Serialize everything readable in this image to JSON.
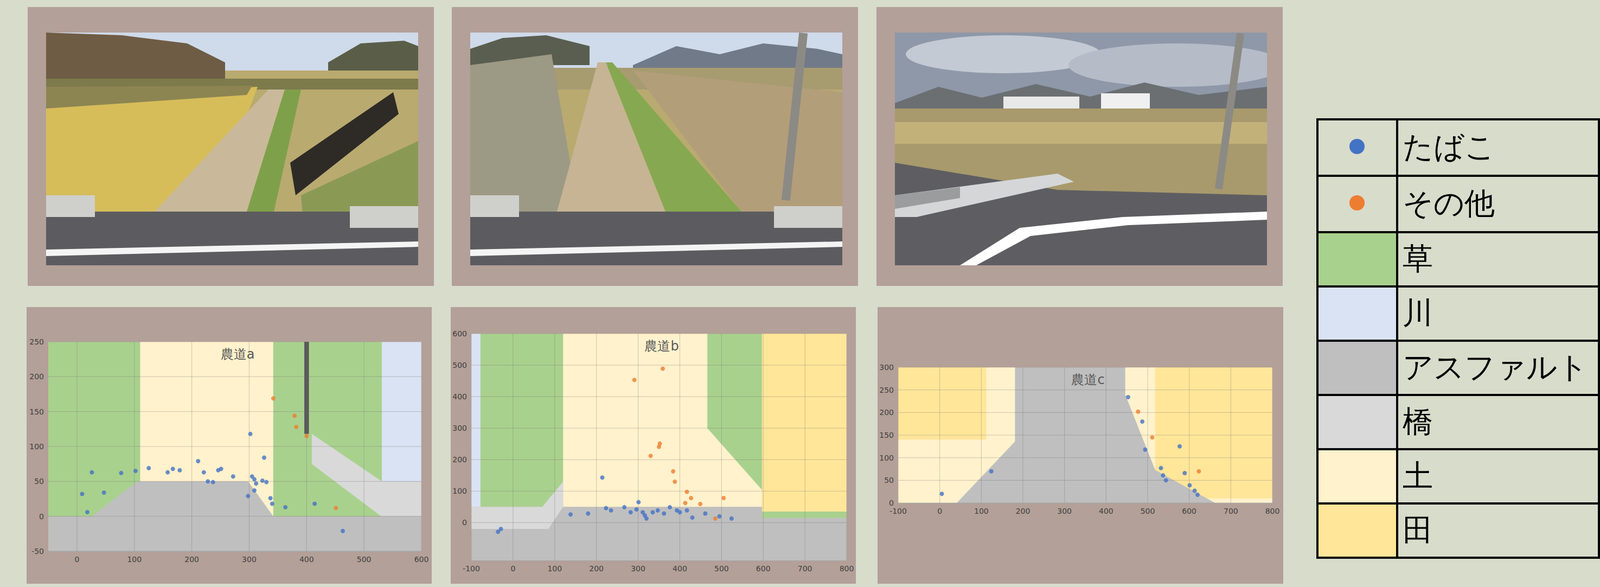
{
  "chart_data": [
    {
      "type": "scatter",
      "title": "農道a",
      "xlim": [
        -50,
        600
      ],
      "xticks": [
        0,
        100,
        200,
        300,
        400,
        500,
        600
      ],
      "ylim": [
        -50,
        250
      ],
      "yticks": [
        -50,
        0,
        50,
        100,
        150,
        200,
        250
      ],
      "grid": true,
      "series": [
        {
          "name": "たばこ",
          "color": "#4472c4",
          "marker": "circle",
          "x": [
            9,
            18,
            26,
            47,
            77,
            102,
            125,
            158,
            167,
            179,
            211,
            221,
            228,
            237,
            246,
            251,
            272,
            298,
            302,
            305,
            309,
            312,
            309,
            323,
            326,
            330,
            337,
            340,
            363,
            414,
            463
          ],
          "y": [
            32,
            6,
            63,
            34,
            62,
            65,
            69,
            63,
            68,
            66,
            79,
            63,
            50,
            49,
            66,
            68,
            57,
            29,
            118,
            57,
            53,
            47,
            37,
            51,
            84,
            49,
            26,
            18,
            13,
            18,
            -21
          ]
        },
        {
          "name": "その他",
          "color": "#ed7d31",
          "marker": "circle",
          "x": [
            342,
            379,
            382,
            400,
            451
          ],
          "y": [
            169,
            144,
            128,
            115,
            12
          ]
        }
      ],
      "regions": [
        {
          "fill": "草",
          "polygon": [
            [
              -50,
              0
            ],
            [
              110,
              0
            ],
            [
              110,
              250
            ],
            [
              -50,
              250
            ]
          ]
        },
        {
          "fill": "土",
          "polygon": [
            [
              110,
              0
            ],
            [
              342,
              0
            ],
            [
              342,
              250
            ],
            [
              110,
              250
            ]
          ]
        },
        {
          "fill": "草",
          "polygon": [
            [
              342,
              0
            ],
            [
              531,
              0
            ],
            [
              531,
              250
            ],
            [
              342,
              250
            ]
          ]
        },
        {
          "fill": "川",
          "polygon": [
            [
              531,
              50
            ],
            [
              600,
              50
            ],
            [
              600,
              250
            ],
            [
              531,
              250
            ]
          ]
        },
        {
          "fill": "アスファルト",
          "polygon": [
            [
              -50,
              -50
            ],
            [
              -50,
              0
            ],
            [
              26,
              0
            ],
            [
              105,
              50
            ],
            [
              298,
              50
            ],
            [
              342,
              0
            ],
            [
              600,
              0
            ],
            [
              600,
              -50
            ]
          ]
        },
        {
          "fill": "橋",
          "polygon": [
            [
              409,
              118
            ],
            [
              531,
              50
            ],
            [
              600,
              50
            ],
            [
              600,
              0
            ],
            [
              530,
              0
            ],
            [
              409,
              75
            ]
          ]
        },
        {
          "color": "#595959",
          "polygon": [
            [
              396,
              118
            ],
            [
              404,
              118
            ],
            [
              404,
              250
            ],
            [
              396,
              250
            ]
          ]
        }
      ]
    },
    {
      "type": "scatter",
      "title": "農道b",
      "xlim": [
        -100,
        800
      ],
      "xticks": [
        -100,
        0,
        100,
        200,
        300,
        400,
        500,
        600,
        700,
        800
      ],
      "ylim": [
        -120,
        600
      ],
      "yticks": [
        0,
        100,
        200,
        300,
        400,
        500,
        600
      ],
      "grid": true,
      "series": [
        {
          "name": "たばこ",
          "color": "#4472c4",
          "marker": "circle",
          "x": [
            -36,
            -29,
            138,
            180,
            214,
            223,
            235,
            267,
            282,
            296,
            301,
            311,
            316,
            320,
            335,
            347,
            362,
            376,
            393,
            400,
            417,
            430,
            461,
            495,
            524
          ],
          "y": [
            -29,
            -20,
            26,
            29,
            143,
            46,
            39,
            49,
            33,
            42,
            65,
            33,
            23,
            13,
            33,
            39,
            29,
            49,
            39,
            33,
            39,
            16,
            29,
            20,
            13
          ]
        },
        {
          "name": "その他",
          "color": "#ed7d31",
          "marker": "circle",
          "x": [
            291,
            359,
            330,
            350,
            352,
            384,
            388,
            417,
            427,
            449,
            505,
            413,
            485
          ],
          "y": [
            453,
            489,
            212,
            241,
            251,
            163,
            130,
            98,
            78,
            59,
            78,
            62,
            13
          ]
        }
      ],
      "regions": [
        {
          "fill": "アスファルト",
          "polygon": [
            [
              -100,
              -120
            ],
            [
              800,
              -120
            ],
            [
              800,
              50
            ],
            [
              -100,
              50
            ]
          ]
        },
        {
          "fill": "川",
          "polygon": [
            [
              -100,
              50
            ],
            [
              -78,
              50
            ],
            [
              -78,
              600
            ],
            [
              -100,
              600
            ]
          ]
        },
        {
          "fill": "草",
          "polygon": [
            [
              -78,
              50
            ],
            [
              120,
              50
            ],
            [
              120,
              600
            ],
            [
              -78,
              600
            ]
          ]
        },
        {
          "fill": "土",
          "polygon": [
            [
              120,
              50
            ],
            [
              597,
              50
            ],
            [
              597,
              600
            ],
            [
              120,
              600
            ]
          ]
        },
        {
          "fill": "草",
          "polygon": [
            [
              466,
              600
            ],
            [
              597,
              600
            ],
            [
              597,
              104
            ],
            [
              466,
              300
            ]
          ]
        },
        {
          "fill": "田",
          "polygon": [
            [
              597,
              35
            ],
            [
              800,
              35
            ],
            [
              800,
              600
            ],
            [
              597,
              600
            ]
          ]
        },
        {
          "fill": "草",
          "polygon": [
            [
              597,
              15
            ],
            [
              800,
              15
            ],
            [
              800,
              35
            ],
            [
              597,
              35
            ]
          ]
        },
        {
          "fill": "橋",
          "polygon": [
            [
              -100,
              -20
            ],
            [
              -100,
              50
            ],
            [
              70,
              50
            ],
            [
              120,
              130
            ],
            [
              120,
              50
            ],
            [
              85,
              -20
            ]
          ]
        }
      ]
    },
    {
      "type": "scatter",
      "title": "農道c",
      "xlim": [
        -100,
        800
      ],
      "xticks": [
        -100,
        0,
        100,
        200,
        300,
        400,
        500,
        600,
        700,
        800
      ],
      "ylim": [
        0,
        300
      ],
      "yticks": [
        0,
        50,
        100,
        150,
        200,
        250,
        300
      ],
      "grid": true,
      "series": [
        {
          "name": "たばこ",
          "color": "#4472c4",
          "marker": "circle",
          "x": [
            5,
            124,
            453,
            487,
            494,
            532,
            537,
            544,
            577,
            589,
            601,
            613,
            620
          ],
          "y": [
            20,
            70,
            234,
            180,
            118,
            77,
            61,
            50,
            125,
            66,
            39,
            27,
            18
          ]
        },
        {
          "name": "その他",
          "color": "#ed7d31",
          "marker": "circle",
          "x": [
            477,
            511,
            623
          ],
          "y": [
            202,
            145,
            70
          ]
        }
      ],
      "regions": [
        {
          "fill": "土",
          "polygon": [
            [
              -100,
              0
            ],
            [
              800,
              0
            ],
            [
              800,
              300
            ],
            [
              -100,
              300
            ]
          ]
        },
        {
          "fill": "田",
          "polygon": [
            [
              -100,
              140
            ],
            [
              112,
              140
            ],
            [
              112,
              300
            ],
            [
              -100,
              300
            ]
          ]
        },
        {
          "fill": "田",
          "polygon": [
            [
              518,
              10
            ],
            [
              800,
              10
            ],
            [
              800,
              300
            ],
            [
              518,
              300
            ]
          ]
        },
        {
          "fill": "アスファルト",
          "polygon": [
            [
              41,
              0
            ],
            [
              181,
              136
            ],
            [
              181,
              300
            ],
            [
              446,
              300
            ],
            [
              446,
              240
            ],
            [
              518,
              73
            ],
            [
              662,
              0
            ]
          ]
        }
      ]
    }
  ],
  "key_table": {
    "rows": [
      {
        "label": "たばこ",
        "color": "#4472c4",
        "marker": "circle"
      },
      {
        "label": "その他",
        "color": "#ed7d31",
        "marker": "circle"
      },
      {
        "label": "草",
        "color": "#a9d18e",
        "marker": "square"
      },
      {
        "label": "川",
        "color": "#dae3f3",
        "marker": "square"
      },
      {
        "label": "アスファルト",
        "color": "#bfbfbf",
        "marker": "square"
      },
      {
        "label": "橋",
        "color": "#d9d9d9",
        "marker": "square"
      },
      {
        "label": "土",
        "color": "#fff2cc",
        "marker": "square"
      },
      {
        "label": "田",
        "color": "#ffe699",
        "marker": "square"
      }
    ]
  }
}
